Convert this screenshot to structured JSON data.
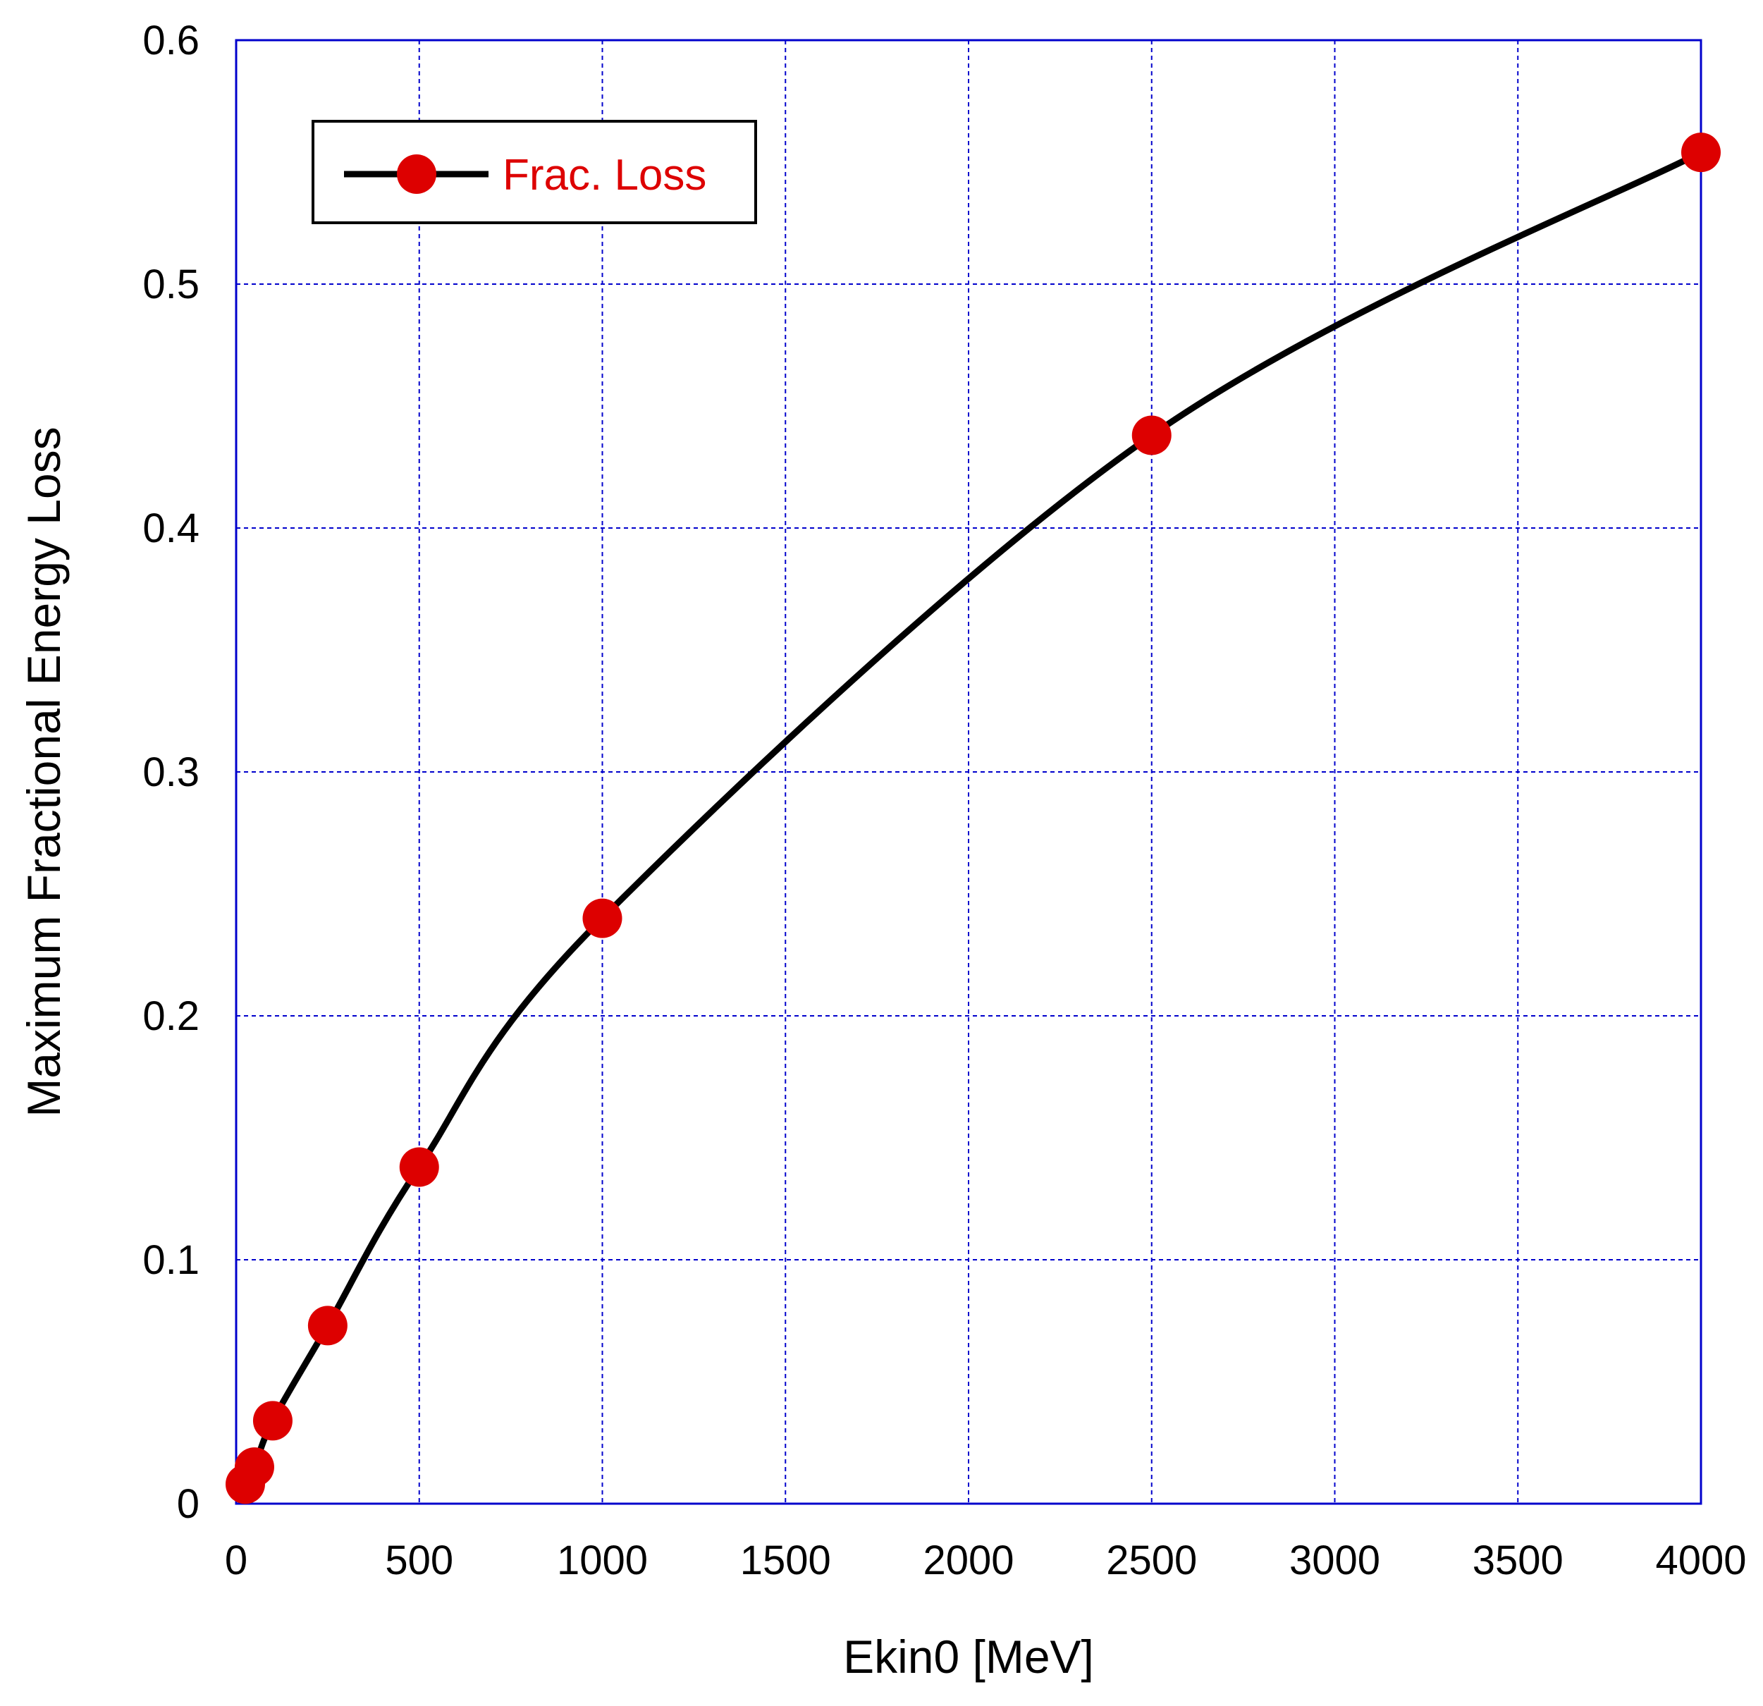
{
  "chart_data": {
    "type": "line",
    "title": "",
    "xlabel": "Ekin0 [MeV]",
    "ylabel": "Maximum Fractional Energy Loss",
    "xlim": [
      0,
      4000
    ],
    "ylim": [
      0,
      0.6
    ],
    "x_ticks": [
      0,
      500,
      1000,
      1500,
      2000,
      2500,
      3000,
      3500,
      4000
    ],
    "x_tick_labels": [
      "0",
      "500",
      "1000",
      "1500",
      "2000",
      "2500",
      "3000",
      "3500",
      "4000"
    ],
    "y_ticks": [
      0,
      0.1,
      0.2,
      0.3,
      0.4,
      0.5,
      0.6
    ],
    "y_tick_labels": [
      "0",
      "0.1",
      "0.2",
      "0.3",
      "0.4",
      "0.5",
      "0.6"
    ],
    "grid": true,
    "legend_position": "top-left",
    "series": [
      {
        "name": "Frac. Loss",
        "line_color": "#000000",
        "marker_color": "#dd0000",
        "label_color": "#dd0000",
        "x": [
          25,
          50,
          100,
          250,
          500,
          1000,
          2500,
          4000
        ],
        "y": [
          0.008,
          0.015,
          0.034,
          0.073,
          0.138,
          0.24,
          0.438,
          0.554
        ]
      }
    ]
  },
  "colors": {
    "grid": "#0000cc",
    "axes_frame": "#0000cc",
    "text": "#000000"
  }
}
